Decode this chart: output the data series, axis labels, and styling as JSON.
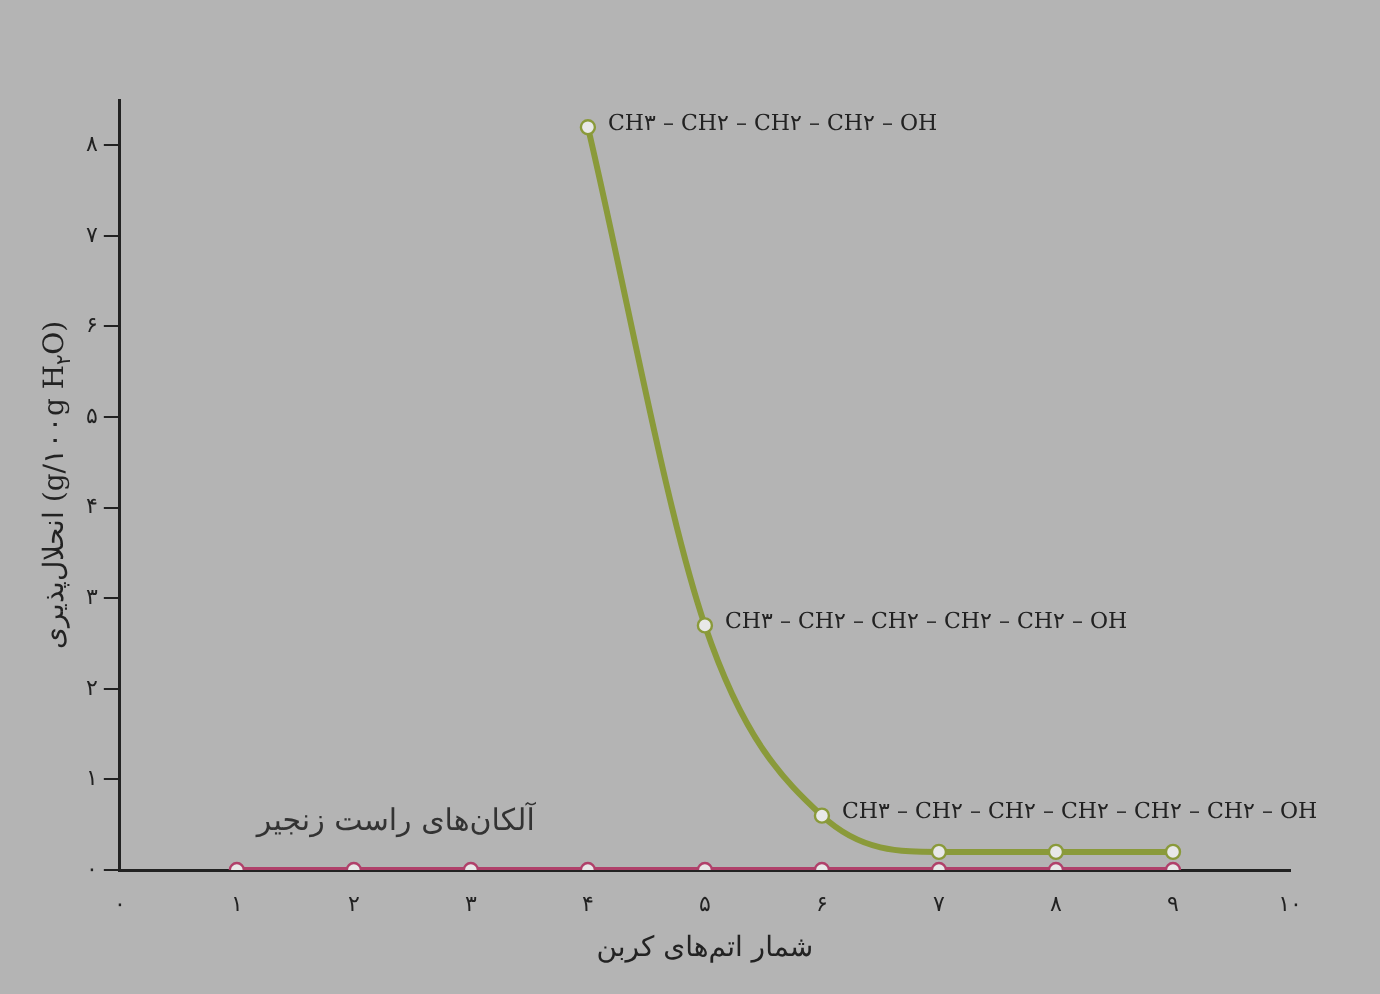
{
  "chart_data": {
    "type": "line",
    "xlabel": "شمار اتم‌های کربن",
    "ylabel": "انحلال‌پذیری (g/۱۰۰g H$_{۲}$O)",
    "xlim": [
      0,
      10
    ],
    "ylim": [
      0,
      8.5
    ],
    "xticks": [
      {
        "value": 0,
        "label": "۰"
      },
      {
        "value": 1,
        "label": "۱"
      },
      {
        "value": 2,
        "label": "۲"
      },
      {
        "value": 3,
        "label": "۳"
      },
      {
        "value": 4,
        "label": "۴"
      },
      {
        "value": 5,
        "label": "۵"
      },
      {
        "value": 6,
        "label": "۶"
      },
      {
        "value": 7,
        "label": "۷"
      },
      {
        "value": 8,
        "label": "۸"
      },
      {
        "value": 9,
        "label": "۹"
      },
      {
        "value": 10,
        "label": "۱۰"
      }
    ],
    "yticks": [
      {
        "value": 0,
        "label": "۰"
      },
      {
        "value": 1,
        "label": "۱"
      },
      {
        "value": 2,
        "label": "۲"
      },
      {
        "value": 3,
        "label": "۳"
      },
      {
        "value": 4,
        "label": "۴"
      },
      {
        "value": 5,
        "label": "۵"
      },
      {
        "value": 6,
        "label": "۶"
      },
      {
        "value": 7,
        "label": "۷"
      },
      {
        "value": 8,
        "label": "۸"
      }
    ],
    "series": [
      {
        "color": "#8a9a3a",
        "x": [
          4,
          5,
          6,
          7,
          8,
          9
        ],
        "values": [
          8.2,
          2.7,
          0.6,
          0.2,
          0.2,
          0.2
        ]
      },
      {
        "name": "آلکان‌های راست زنجیر",
        "color": "#b0406a",
        "x": [
          1,
          2,
          3,
          4,
          5,
          6,
          7,
          8,
          9
        ],
        "values": [
          0,
          0,
          0,
          0,
          0,
          0,
          0,
          0,
          0
        ]
      }
    ],
    "annotations": [
      {
        "text": "CH۳ – CH۲ – CH۲ – CH۲ – OH",
        "x": 4,
        "y": 8.2
      },
      {
        "text": "CH۳ – CH۲ – CH۲ – CH۲ – CH۲ – OH",
        "x": 5,
        "y": 2.7
      },
      {
        "text": "CH۳ – CH۲ – CH۲ – CH۲ – CH۲ – CH۲ – OH",
        "x": 6,
        "y": 0.6
      }
    ],
    "grid": false,
    "legend": false,
    "marker": "circle",
    "line_style": "solid"
  }
}
